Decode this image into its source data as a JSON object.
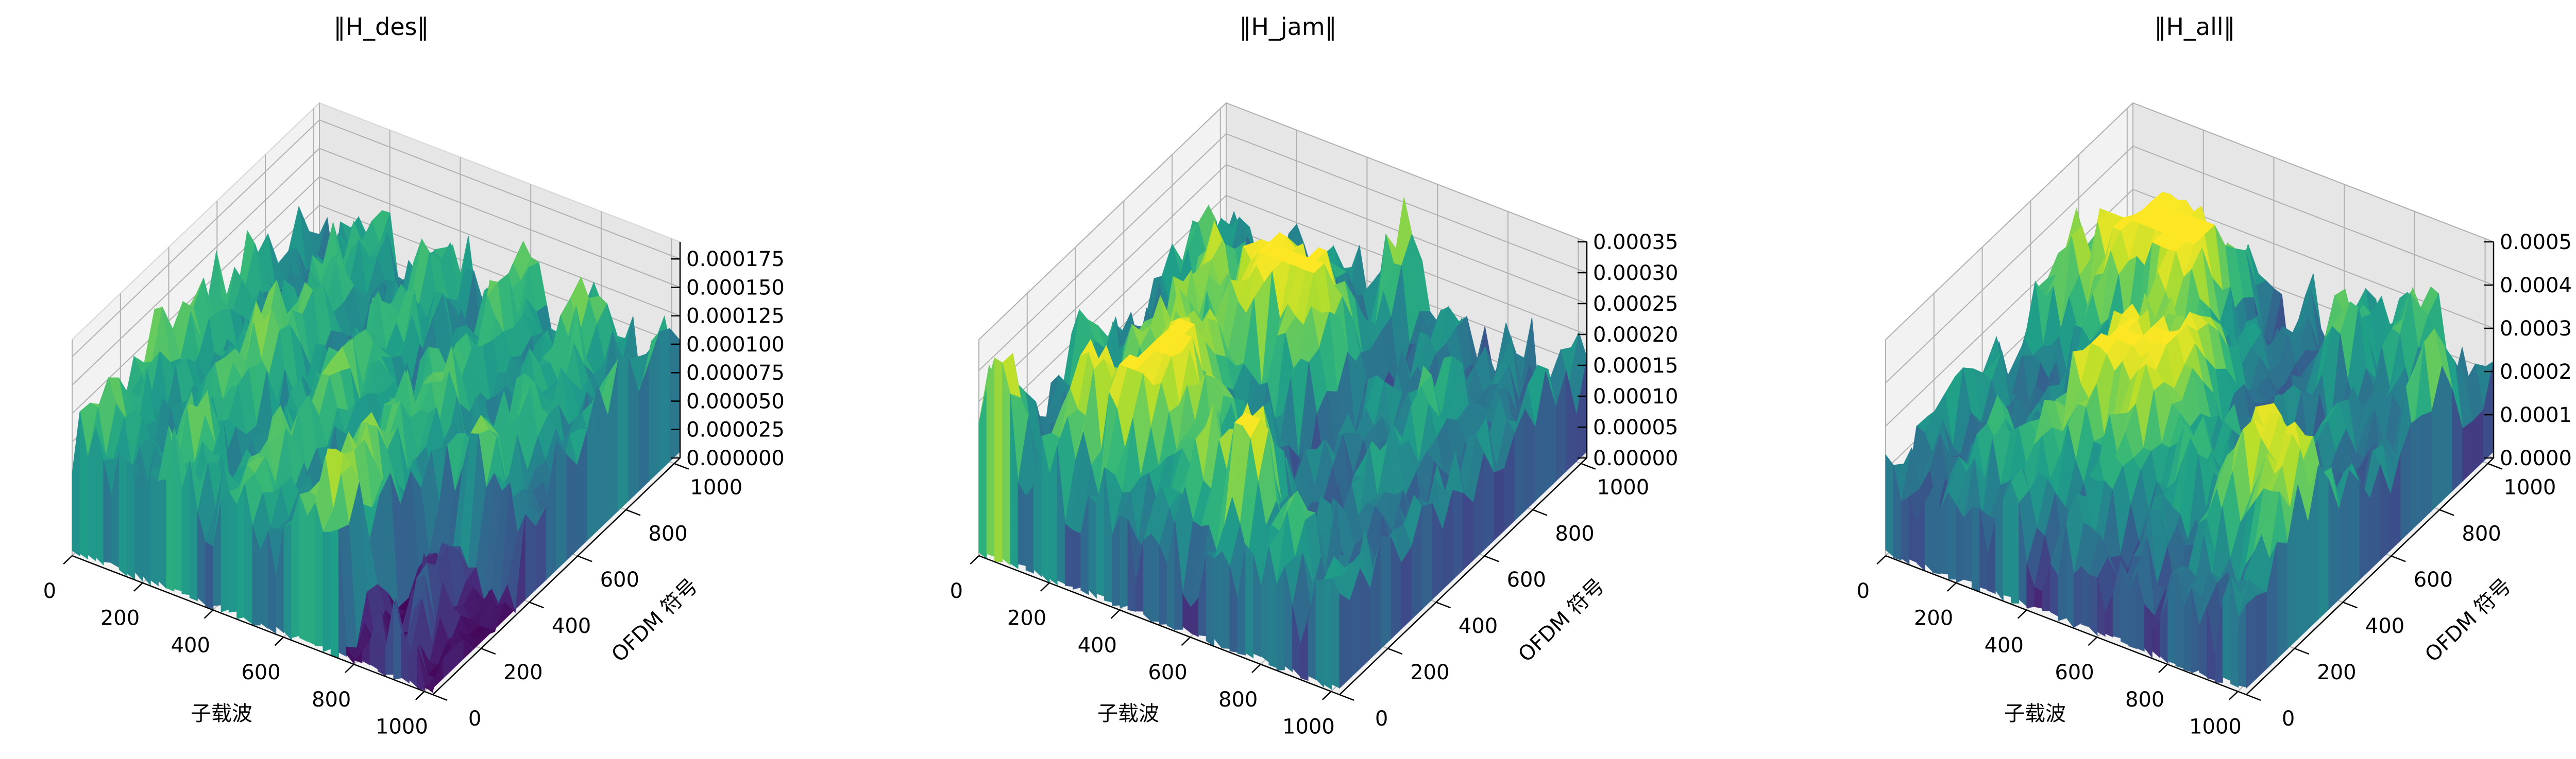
{
  "chart_data": [
    {
      "type": "surface3d",
      "title": "‖H_des‖",
      "xlabel": "子载波",
      "ylabel": "OFDM 符号",
      "x_ticks": [
        "0",
        "200",
        "400",
        "600",
        "800",
        "1000"
      ],
      "y_ticks": [
        "0",
        "200",
        "400",
        "600",
        "800",
        "1000"
      ],
      "z_ticks": [
        "0.000000",
        "0.000025",
        "0.000050",
        "0.000075",
        "0.000100",
        "0.000125",
        "0.000150",
        "0.000175"
      ],
      "xlim": [
        0,
        1024
      ],
      "ylim": [
        0,
        1024
      ],
      "zlim": [
        0,
        0.00019
      ],
      "z_range_observed": [
        0.0,
        0.00017
      ],
      "colormap": "viridis",
      "grid": true
    },
    {
      "type": "surface3d",
      "title": "‖H_jam‖",
      "xlabel": "子载波",
      "ylabel": "OFDM 符号",
      "x_ticks": [
        "0",
        "200",
        "400",
        "600",
        "800",
        "1000"
      ],
      "y_ticks": [
        "0",
        "200",
        "400",
        "600",
        "800",
        "1000"
      ],
      "z_ticks": [
        "0.00000",
        "0.00005",
        "0.00010",
        "0.00015",
        "0.00020",
        "0.00025",
        "0.00030",
        "0.00035"
      ],
      "xlim": [
        0,
        1024
      ],
      "ylim": [
        0,
        1024
      ],
      "zlim": [
        0,
        0.00035
      ],
      "z_range_observed": [
        0.0,
        0.00033
      ],
      "colormap": "viridis",
      "grid": true
    },
    {
      "type": "surface3d",
      "title": "‖H_all‖",
      "xlabel": "子载波",
      "ylabel": "OFDM 符号",
      "x_ticks": [
        "0",
        "200",
        "400",
        "600",
        "800",
        "1000"
      ],
      "y_ticks": [
        "0",
        "200",
        "400",
        "600",
        "800",
        "1000"
      ],
      "z_ticks": [
        "0.0000",
        "0.0001",
        "0.0002",
        "0.0003",
        "0.0004",
        "0.0005"
      ],
      "xlim": [
        0,
        1024
      ],
      "ylim": [
        0,
        1024
      ],
      "zlim": [
        0,
        0.0005
      ],
      "z_range_observed": [
        0.0,
        0.00045
      ],
      "colormap": "viridis",
      "grid": true
    }
  ]
}
